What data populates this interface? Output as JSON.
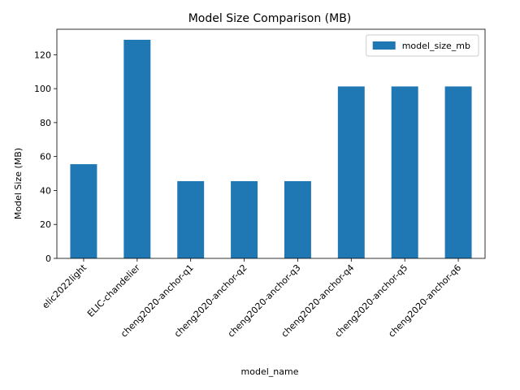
{
  "chart_data": {
    "type": "bar",
    "title": "Model Size Comparison (MB)",
    "xlabel": "model_name",
    "ylabel": "Model Size (MB)",
    "categories": [
      "elic2022light",
      "ELIC-chandelier",
      "cheng2020-anchor-q1",
      "cheng2020-anchor-q2",
      "cheng2020-anchor-q3",
      "cheng2020-anchor-q4",
      "cheng2020-anchor-q5",
      "cheng2020-anchor-q6"
    ],
    "series": [
      {
        "name": "model_size_mb",
        "color": "#1f77b4",
        "values": [
          55.5,
          128.8,
          45.5,
          45.5,
          45.5,
          101.3,
          101.3,
          101.3
        ]
      }
    ],
    "ylim": [
      0,
      135
    ],
    "yticks": [
      0,
      20,
      40,
      60,
      80,
      100,
      120
    ],
    "grid": false,
    "legend": "upper-right"
  }
}
